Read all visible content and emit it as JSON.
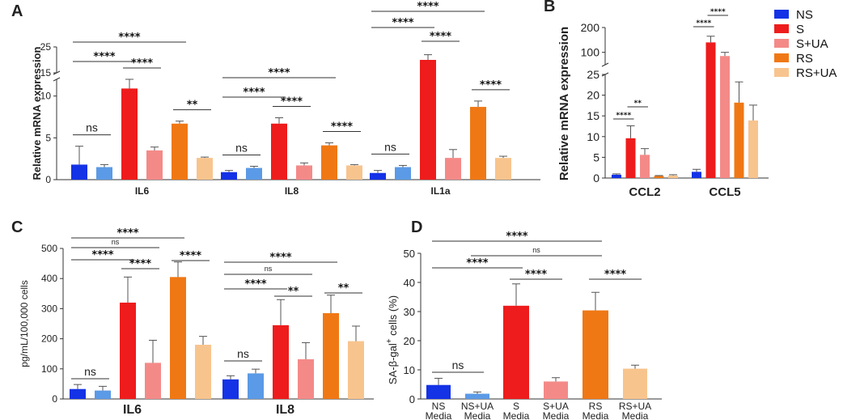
{
  "legend": {
    "items": [
      {
        "label": "NS",
        "color": "#1432e6"
      },
      {
        "label": "S",
        "color": "#ee1c1c"
      },
      {
        "label": "S+UA",
        "color": "#f48a88"
      },
      {
        "label": "RS",
        "color": "#f07814"
      },
      {
        "label": "RS+UA",
        "color": "#f8c48e"
      }
    ]
  },
  "panel_labels": {
    "a": "A",
    "b": "B",
    "c": "C",
    "d": "D"
  },
  "chart_data": [
    {
      "id": "A",
      "type": "bar",
      "ylabel": "Relative mRNA expression",
      "categories": [
        "IL6",
        "IL8",
        "IL1a"
      ],
      "series_names": [
        "NS",
        "NS+UA",
        "S",
        "S+UA",
        "RS",
        "RS+UA"
      ],
      "colors": [
        "#1432e6",
        "#5b9ae6",
        "#ee1c1c",
        "#f48a88",
        "#f07814",
        "#f8c48e"
      ],
      "values": [
        [
          1.8,
          1.5,
          10.9,
          3.5,
          6.7,
          2.6
        ],
        [
          0.9,
          1.4,
          6.7,
          1.7,
          4.1,
          1.7
        ],
        [
          0.8,
          1.5,
          20,
          2.6,
          8.7,
          2.6
        ]
      ],
      "errors": [
        [
          2.2,
          0.3,
          1.4,
          0.4,
          0.3,
          0.1
        ],
        [
          0.2,
          0.2,
          0.7,
          0.3,
          0.3,
          0.1
        ],
        [
          0.3,
          0.2,
          2,
          1.0,
          0.7,
          0.2
        ]
      ],
      "yticks_lower": [
        "0",
        "5",
        "10"
      ],
      "yticks_upper": [
        "15",
        "25"
      ],
      "ylim_lower": [
        0,
        12
      ],
      "ylim_upper": [
        15,
        25
      ],
      "annotations": [
        {
          "group": 0,
          "from": 0,
          "to": 1,
          "label": "ns"
        },
        {
          "group": 0,
          "from": 0,
          "to": 2,
          "label": "****"
        },
        {
          "group": 0,
          "from": 0,
          "to": 4,
          "label": "****"
        },
        {
          "group": 0,
          "from": 2,
          "to": 3,
          "label": "****"
        },
        {
          "group": 0,
          "from": 4,
          "to": 5,
          "label": "**"
        },
        {
          "group": 1,
          "from": 0,
          "to": 1,
          "label": "ns"
        },
        {
          "group": 1,
          "from": 0,
          "to": 2,
          "label": "****"
        },
        {
          "group": 1,
          "from": 0,
          "to": 4,
          "label": "****"
        },
        {
          "group": 1,
          "from": 2,
          "to": 3,
          "label": "****"
        },
        {
          "group": 1,
          "from": 4,
          "to": 5,
          "label": "****"
        },
        {
          "group": 2,
          "from": 0,
          "to": 1,
          "label": "ns"
        },
        {
          "group": 2,
          "from": 0,
          "to": 2,
          "label": "****"
        },
        {
          "group": 2,
          "from": 0,
          "to": 4,
          "label": "****"
        },
        {
          "group": 2,
          "from": 2,
          "to": 3,
          "label": "****"
        },
        {
          "group": 2,
          "from": 4,
          "to": 5,
          "label": "****"
        }
      ]
    },
    {
      "id": "B",
      "type": "bar",
      "ylabel": "Relative mRNA expression",
      "categories": [
        "CCL2",
        "CCL5"
      ],
      "series_names": [
        "NS",
        "S",
        "S+UA",
        "RS",
        "RS+UA"
      ],
      "colors": [
        "#1432e6",
        "#ee1c1c",
        "#f48a88",
        "#f07814",
        "#f8c48e"
      ],
      "values": [
        [
          0.8,
          9.6,
          5.6,
          0.5,
          0.6
        ],
        [
          1.5,
          140,
          85,
          18.2,
          13.9
        ]
      ],
      "errors": [
        [
          0.2,
          3.0,
          1.5,
          0.1,
          0.2
        ],
        [
          0.6,
          25,
          15,
          5,
          3.7
        ]
      ],
      "yticks_lower": [
        "0",
        "5",
        "10",
        "15",
        "20",
        "25"
      ],
      "yticks_upper": [
        "100",
        "200"
      ],
      "ylim_lower": [
        0,
        25
      ],
      "ylim_upper": [
        50,
        200
      ],
      "annotations": [
        {
          "group": 0,
          "from": 0,
          "to": 1,
          "label": "****"
        },
        {
          "group": 0,
          "from": 1,
          "to": 2,
          "label": "**"
        },
        {
          "group": 1,
          "from": 0,
          "to": 1,
          "label": "****"
        },
        {
          "group": 1,
          "from": 1,
          "to": 2,
          "label": "****"
        }
      ]
    },
    {
      "id": "C",
      "type": "bar",
      "ylabel": "pg/mL/100,000 cells",
      "categories": [
        "IL6",
        "IL8"
      ],
      "series_names": [
        "NS",
        "NS+UA",
        "S",
        "S+UA",
        "RS",
        "RS+UA"
      ],
      "colors": [
        "#1432e6",
        "#5b9ae6",
        "#ee1c1c",
        "#f48a88",
        "#f07814",
        "#f8c48e"
      ],
      "values": [
        [
          33,
          28,
          320,
          120,
          405,
          180
        ],
        [
          65,
          85,
          245,
          132,
          285,
          192
        ]
      ],
      "errors": [
        [
          15,
          14,
          85,
          75,
          50,
          28
        ],
        [
          12,
          14,
          85,
          55,
          60,
          50
        ]
      ],
      "yticks": [
        "0",
        "100",
        "200",
        "300",
        "400",
        "500"
      ],
      "ylim": [
        0,
        500
      ],
      "annotations": [
        {
          "group": 0,
          "from": 0,
          "to": 1,
          "label": "ns"
        },
        {
          "group": 0,
          "from": 0,
          "to": 2,
          "label": "****"
        },
        {
          "group": 0,
          "from": 0,
          "to": 3,
          "label": "ns"
        },
        {
          "group": 0,
          "from": 0,
          "to": 4,
          "label": "****"
        },
        {
          "group": 0,
          "from": 2,
          "to": 3,
          "label": "****"
        },
        {
          "group": 0,
          "from": 4,
          "to": 5,
          "label": "****"
        },
        {
          "group": 1,
          "from": 0,
          "to": 1,
          "label": "ns"
        },
        {
          "group": 1,
          "from": 0,
          "to": 2,
          "label": "****"
        },
        {
          "group": 1,
          "from": 0,
          "to": 3,
          "label": "ns"
        },
        {
          "group": 1,
          "from": 0,
          "to": 4,
          "label": "****"
        },
        {
          "group": 1,
          "from": 2,
          "to": 3,
          "label": "**"
        },
        {
          "group": 1,
          "from": 4,
          "to": 5,
          "label": "**"
        }
      ]
    },
    {
      "id": "D",
      "type": "bar",
      "ylabel": "SA-β-gal⁺ cells (%)",
      "ylabel_main": "SA-β-gal",
      "ylabel_sup": "+",
      "ylabel_tail": " cells (%)",
      "categories": [
        [
          "NS",
          "Media"
        ],
        [
          "NS+UA",
          "Media"
        ],
        [
          "S",
          "Media"
        ],
        [
          "S+UA",
          "Media"
        ],
        [
          "RS",
          "Media"
        ],
        [
          "RS+UA",
          "Media"
        ]
      ],
      "colors": [
        "#1432e6",
        "#5b9ae6",
        "#ee1c1c",
        "#f48a88",
        "#f07814",
        "#f8c48e"
      ],
      "values": [
        4.8,
        1.8,
        32,
        6,
        30.4,
        10.4
      ],
      "errors": [
        2.3,
        0.6,
        7.5,
        1.3,
        6.2,
        1.2
      ],
      "yticks": [
        "0",
        "10",
        "20",
        "30",
        "40",
        "50"
      ],
      "ylim": [
        0,
        50
      ],
      "annotations": [
        {
          "from": 0,
          "to": 1,
          "label": "ns"
        },
        {
          "from": 0,
          "to": 2,
          "label": "****"
        },
        {
          "from": 1,
          "to": 4,
          "label": "ns"
        },
        {
          "from": 0,
          "to": 4,
          "label": "****"
        },
        {
          "from": 2,
          "to": 3,
          "label": "****"
        },
        {
          "from": 4,
          "to": 5,
          "label": "****"
        }
      ]
    }
  ]
}
